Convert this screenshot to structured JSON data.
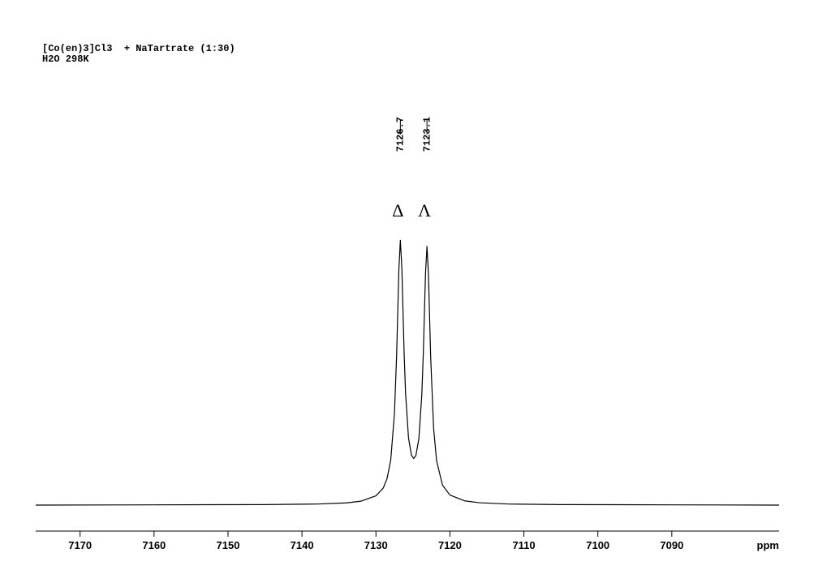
{
  "chart_data": {
    "type": "line",
    "title": "[Co(en)3]Cl3  + NaTartrate (1:30)",
    "subtitle": "H2O 298K",
    "x_label": "ppm",
    "color": "#000000",
    "x": [
      7176,
      7160,
      7145,
      7138,
      7134,
      7132,
      7130,
      7129,
      7128.5,
      7128,
      7127.5,
      7127.2,
      7127,
      7126.9,
      7126.7,
      7126.5,
      7126.4,
      7126.2,
      7126,
      7125.6,
      7125.2,
      7124.9,
      7124.6,
      7124.2,
      7123.8,
      7123.6,
      7123.4,
      7123.3,
      7123.1,
      7122.9,
      7122.8,
      7122.6,
      7122.2,
      7121.8,
      7121,
      7120,
      7118,
      7116,
      7112,
      7105,
      7090,
      7075.5
    ],
    "values": [
      0,
      0.1,
      0.2,
      0.4,
      0.85,
      1.5,
      3.5,
      6.5,
      10.0,
      17.0,
      34.5,
      56.9,
      78.4,
      89.0,
      99.9,
      89.5,
      79.2,
      58.2,
      42.4,
      25.4,
      18.8,
      17.6,
      18.7,
      25.0,
      41.6,
      57.0,
      77.3,
      87.4,
      97.6,
      86.9,
      76.5,
      55.7,
      28.8,
      16.7,
      7.5,
      3.8,
      1.6,
      0.9,
      0.4,
      0.2,
      0.1,
      0
    ],
    "xlim": [
      7176,
      7075.5
    ],
    "xticks": [
      7170,
      7160,
      7150,
      7140,
      7130,
      7120,
      7110,
      7100,
      7090
    ],
    "ylim": [
      0,
      100
    ],
    "peak_labels": [
      7126.7,
      7123.1
    ],
    "annotations": [
      "Δ",
      "Λ"
    ]
  }
}
